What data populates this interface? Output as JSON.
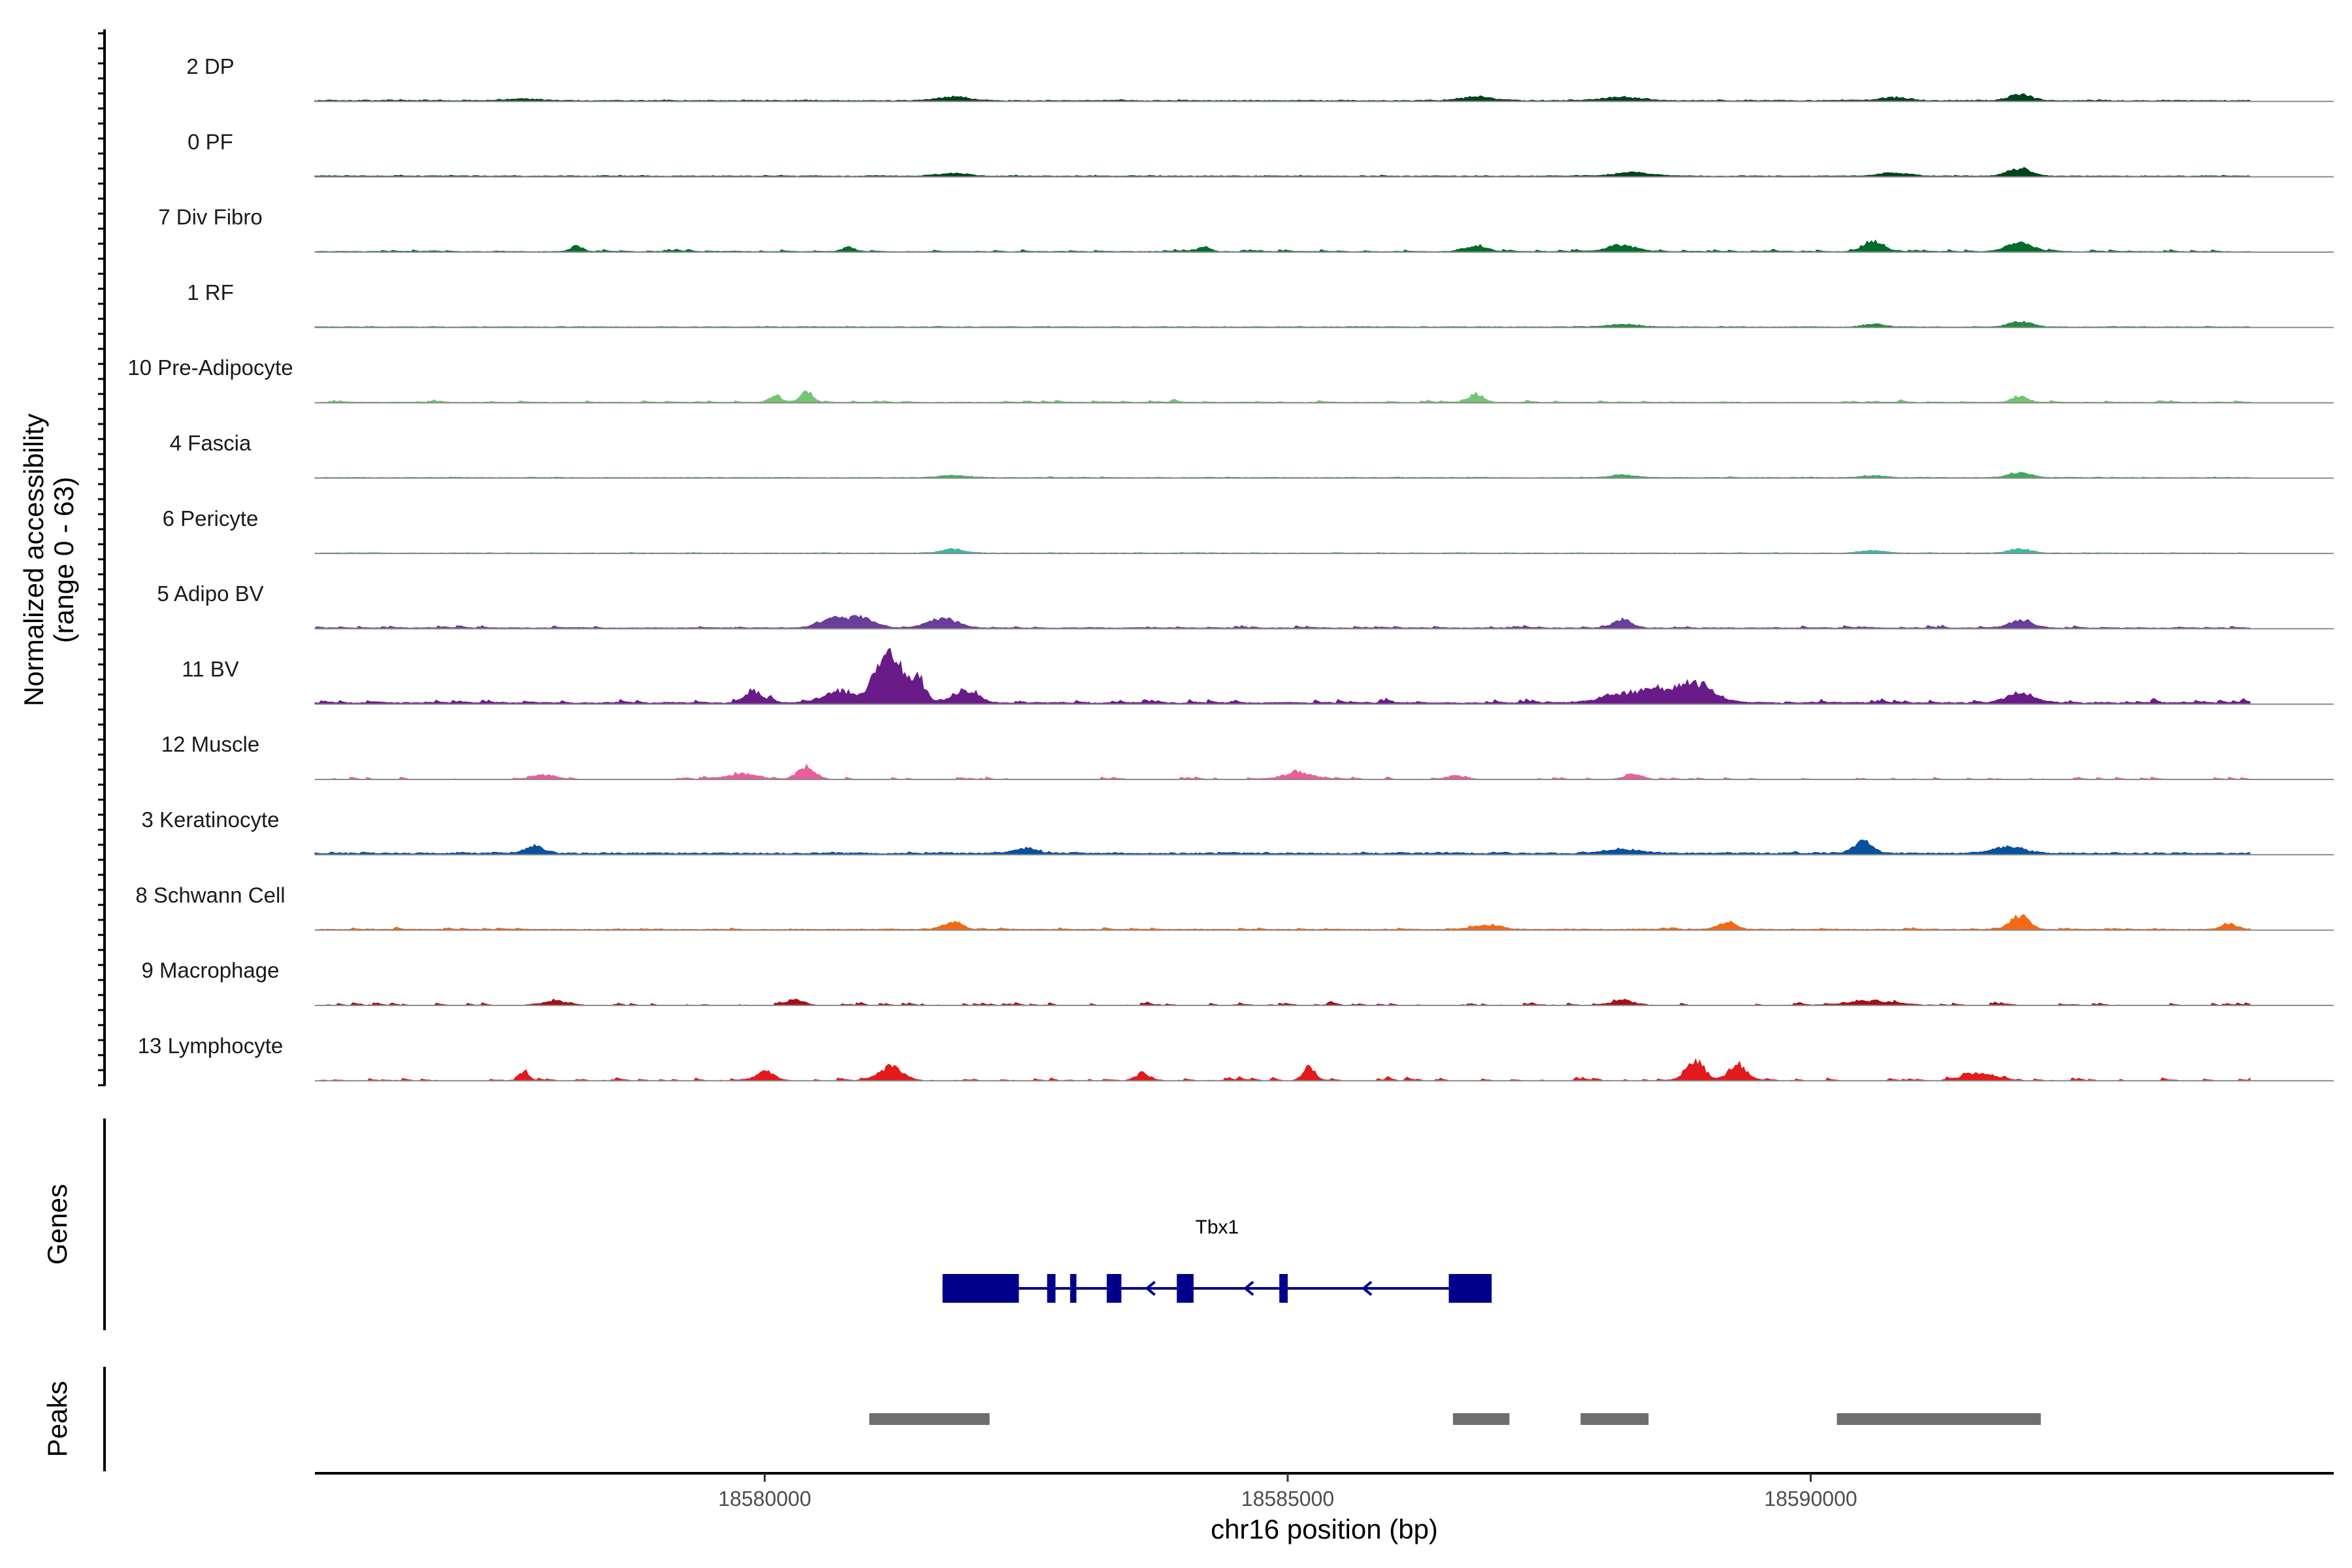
{
  "chart_data": [
    {
      "type": "area",
      "panel": "coverage",
      "ylabel_line1": "Normalized accessibility",
      "ylabel_line2": "(range 0 - 63)",
      "ylim": [
        0,
        63
      ],
      "xlim": [
        18575700,
        18595000
      ],
      "series": [
        {
          "name": "2 DP",
          "color": "#00441b",
          "peaks": [
            [
              18577700,
              1.5,
              180
            ],
            [
              18581800,
              3,
              200
            ],
            [
              18586800,
              2.5,
              220
            ],
            [
              18588200,
              2.5,
              250
            ],
            [
              18590800,
              2.5,
              200
            ],
            [
              18592000,
              4.5,
              150
            ]
          ],
          "base": 0.6,
          "noise": 0.5
        },
        {
          "name": "0 PF",
          "color": "#00441b",
          "peaks": [
            [
              18581800,
              2,
              180
            ],
            [
              18588300,
              2.5,
              250
            ],
            [
              18590800,
              2.5,
              200
            ],
            [
              18592000,
              6,
              150
            ]
          ],
          "base": 0.5,
          "noise": 0.4
        },
        {
          "name": "7 Div Fibro",
          "color": "#006d2c",
          "peaks": [
            [
              18578200,
              4,
              80
            ],
            [
              18580800,
              3,
              80
            ],
            [
              18584200,
              3,
              80
            ],
            [
              18586800,
              4,
              150
            ],
            [
              18588200,
              5,
              180
            ],
            [
              18590600,
              8,
              120
            ],
            [
              18592000,
              6,
              180
            ]
          ],
          "base": 0.2,
          "noise": 1.4
        },
        {
          "name": "1 RF",
          "color": "#238b45",
          "peaks": [
            [
              18588200,
              2,
              200
            ],
            [
              18590600,
              2,
              150
            ],
            [
              18592000,
              4,
              150
            ]
          ],
          "base": 0.4,
          "noise": 0.3
        },
        {
          "name": "10 Pre-Adipocyte",
          "color": "#74c476",
          "peaks": [
            [
              18580100,
              5,
              80
            ],
            [
              18580400,
              8,
              80
            ],
            [
              18586800,
              6,
              100
            ],
            [
              18592000,
              5,
              100
            ]
          ],
          "base": 0.2,
          "noise": 1.2
        },
        {
          "name": "4 Fascia",
          "color": "#41ab5d",
          "peaks": [
            [
              18581800,
              1.5,
              200
            ],
            [
              18588200,
              2,
              150
            ],
            [
              18590600,
              1.5,
              150
            ],
            [
              18592000,
              4,
              150
            ]
          ],
          "base": 0.4,
          "noise": 0.3
        },
        {
          "name": "6 Pericyte",
          "color": "#41b6a4",
          "peaks": [
            [
              18581800,
              3,
              150
            ],
            [
              18590600,
              2,
              150
            ],
            [
              18592000,
              3,
              150
            ]
          ],
          "base": 0.3,
          "noise": 0.3
        },
        {
          "name": "5 Adipo BV",
          "color": "#6a3d9a",
          "peaks": [
            [
              18580600,
              6,
              160
            ],
            [
              18580900,
              8,
              200
            ],
            [
              18581700,
              7,
              200
            ],
            [
              18588200,
              6,
              120
            ],
            [
              18592000,
              5,
              160
            ]
          ],
          "base": 0.4,
          "noise": 1.5
        },
        {
          "name": "11 BV",
          "color": "#6a1b8a",
          "peaks": [
            [
              18579900,
              8,
              120
            ],
            [
              18580700,
              9,
              200
            ],
            [
              18581100,
              25,
              130
            ],
            [
              18581250,
              30,
              100
            ],
            [
              18581450,
              22,
              100
            ],
            [
              18581900,
              9,
              180
            ],
            [
              18588400,
              9,
              400
            ],
            [
              18588900,
              13,
              250
            ],
            [
              18592000,
              7,
              200
            ]
          ],
          "base": 0.5,
          "noise": 2.5
        },
        {
          "name": "12 Muscle",
          "color": "#e7609a",
          "peaks": [
            [
              18577900,
              3,
              150
            ],
            [
              18579800,
              4,
              200
            ],
            [
              18580400,
              9,
              120
            ],
            [
              18585100,
              5,
              200
            ],
            [
              18586600,
              3,
              100
            ],
            [
              18588300,
              3,
              120
            ]
          ],
          "base": 0.0,
          "noise": 1.4
        },
        {
          "name": "3 Keratinocyte",
          "color": "#08519c",
          "peaks": [
            [
              18577800,
              6,
              120
            ],
            [
              18582500,
              4,
              150
            ],
            [
              18588200,
              3,
              250
            ],
            [
              18590500,
              9,
              120
            ],
            [
              18591900,
              5,
              200
            ]
          ],
          "base": 1.0,
          "noise": 0.7
        },
        {
          "name": "8 Schwann Cell",
          "color": "#f16913",
          "peaks": [
            [
              18581800,
              6,
              120
            ],
            [
              18586900,
              3,
              200
            ],
            [
              18589200,
              5,
              120
            ],
            [
              18592000,
              11,
              120
            ],
            [
              18594000,
              4,
              100
            ]
          ],
          "base": 0.4,
          "noise": 1.0
        },
        {
          "name": "9 Macrophage",
          "color": "#a50f15",
          "peaks": [
            [
              18578000,
              3,
              150
            ],
            [
              18580300,
              4,
              100
            ],
            [
              18588200,
              3,
              150
            ],
            [
              18590600,
              3,
              300
            ]
          ],
          "base": 0.0,
          "noise": 1.6
        },
        {
          "name": "13 Lymphocyte",
          "color": "#e31a1c",
          "peaks": [
            [
              18577700,
              7,
              60
            ],
            [
              18580000,
              6,
              120
            ],
            [
              18581200,
              10,
              150
            ],
            [
              18583600,
              5,
              80
            ],
            [
              18585200,
              10,
              80
            ],
            [
              18588900,
              14,
              120
            ],
            [
              18589300,
              12,
              120
            ],
            [
              18591600,
              6,
              200
            ]
          ],
          "base": 0.0,
          "noise": 1.8
        }
      ]
    },
    {
      "type": "gene-track",
      "panel": "genes",
      "ylabel": "Genes",
      "gene_name": "Tbx1",
      "gene_color": "#00008b",
      "gene_start": 18581700,
      "gene_end": 18586950,
      "strand": "-",
      "exons": [
        [
          18581700,
          18582430
        ],
        [
          18582700,
          18582780
        ],
        [
          18582920,
          18582980
        ],
        [
          18583270,
          18583410
        ],
        [
          18583940,
          18584100
        ],
        [
          18584920,
          18585000
        ],
        [
          18586540,
          18586950
        ]
      ],
      "strand_arrows": [
        18583680,
        18584620,
        18585750
      ]
    },
    {
      "type": "interval-track",
      "panel": "peaks",
      "ylabel": "Peaks",
      "color": "#6e6e6e",
      "intervals": [
        [
          18581000,
          18582150
        ],
        [
          18586580,
          18587120
        ],
        [
          18587800,
          18588450
        ],
        [
          18590250,
          18592200
        ]
      ]
    },
    {
      "type": "axis",
      "xlabel": "chr16 position (bp)",
      "xticks": [
        18580000,
        18585000,
        18590000
      ],
      "xtick_labels": [
        "18580000",
        "18585000",
        "18590000"
      ]
    }
  ]
}
